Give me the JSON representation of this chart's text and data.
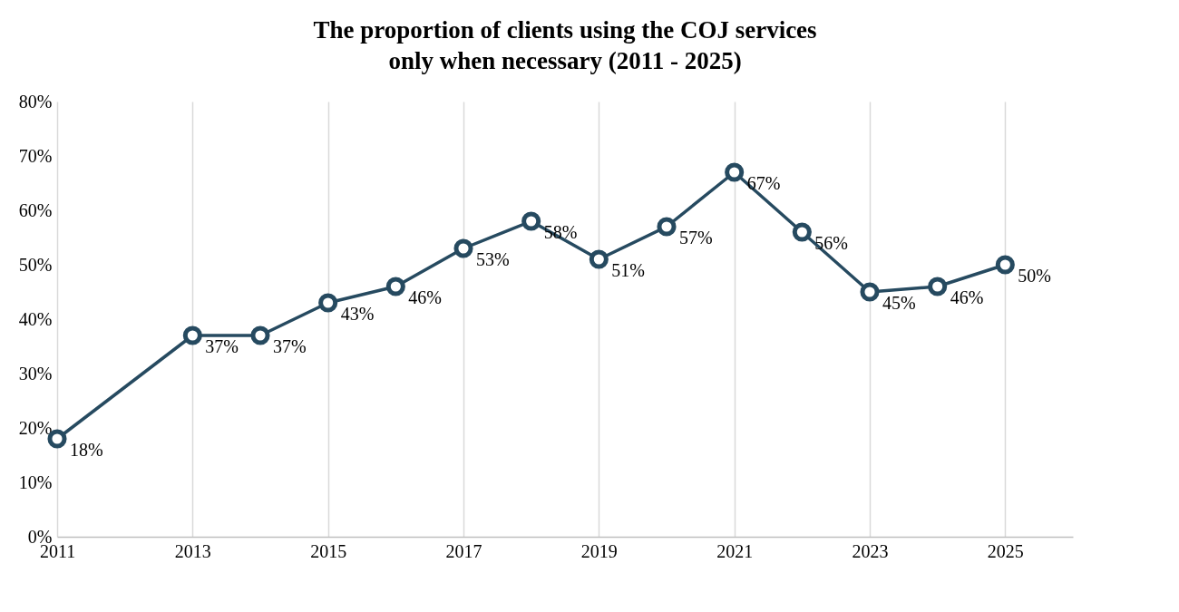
{
  "chart_data": {
    "type": "line",
    "title": "The proportion of clients using the COJ services only when necessary (2011 - 2025)",
    "x": [
      2011,
      2013,
      2014,
      2015,
      2016,
      2017,
      2018,
      2019,
      2020,
      2021,
      2022,
      2023,
      2024,
      2025
    ],
    "series": [
      {
        "color": "#264a60",
        "values": [
          18,
          37,
          37,
          43,
          46,
          53,
          58,
          51,
          57,
          67,
          56,
          45,
          46,
          50
        ],
        "value_labels": [
          "18%",
          "37%",
          "37%",
          "43%",
          "46%",
          "53%",
          "58%",
          "51%",
          "57%",
          "67%",
          "56%",
          "45%",
          "46%",
          "50%"
        ]
      }
    ],
    "xlim": [
      2011,
      2026
    ],
    "xticks": [
      2011,
      2013,
      2015,
      2017,
      2019,
      2021,
      2023,
      2025
    ],
    "ylim": [
      0,
      80
    ],
    "yticks": [
      {
        "value": 0,
        "label": "0%"
      },
      {
        "value": 10,
        "label": "10%"
      },
      {
        "value": 20,
        "label": "20%"
      },
      {
        "value": 30,
        "label": "30%"
      },
      {
        "value": 40,
        "label": "40%"
      },
      {
        "value": 50,
        "label": "50%"
      },
      {
        "value": 60,
        "label": "60%"
      },
      {
        "value": 70,
        "label": "70%"
      },
      {
        "value": 80,
        "label": "80%"
      }
    ],
    "grid": "x",
    "marker": "circle",
    "line_style": "solid"
  }
}
